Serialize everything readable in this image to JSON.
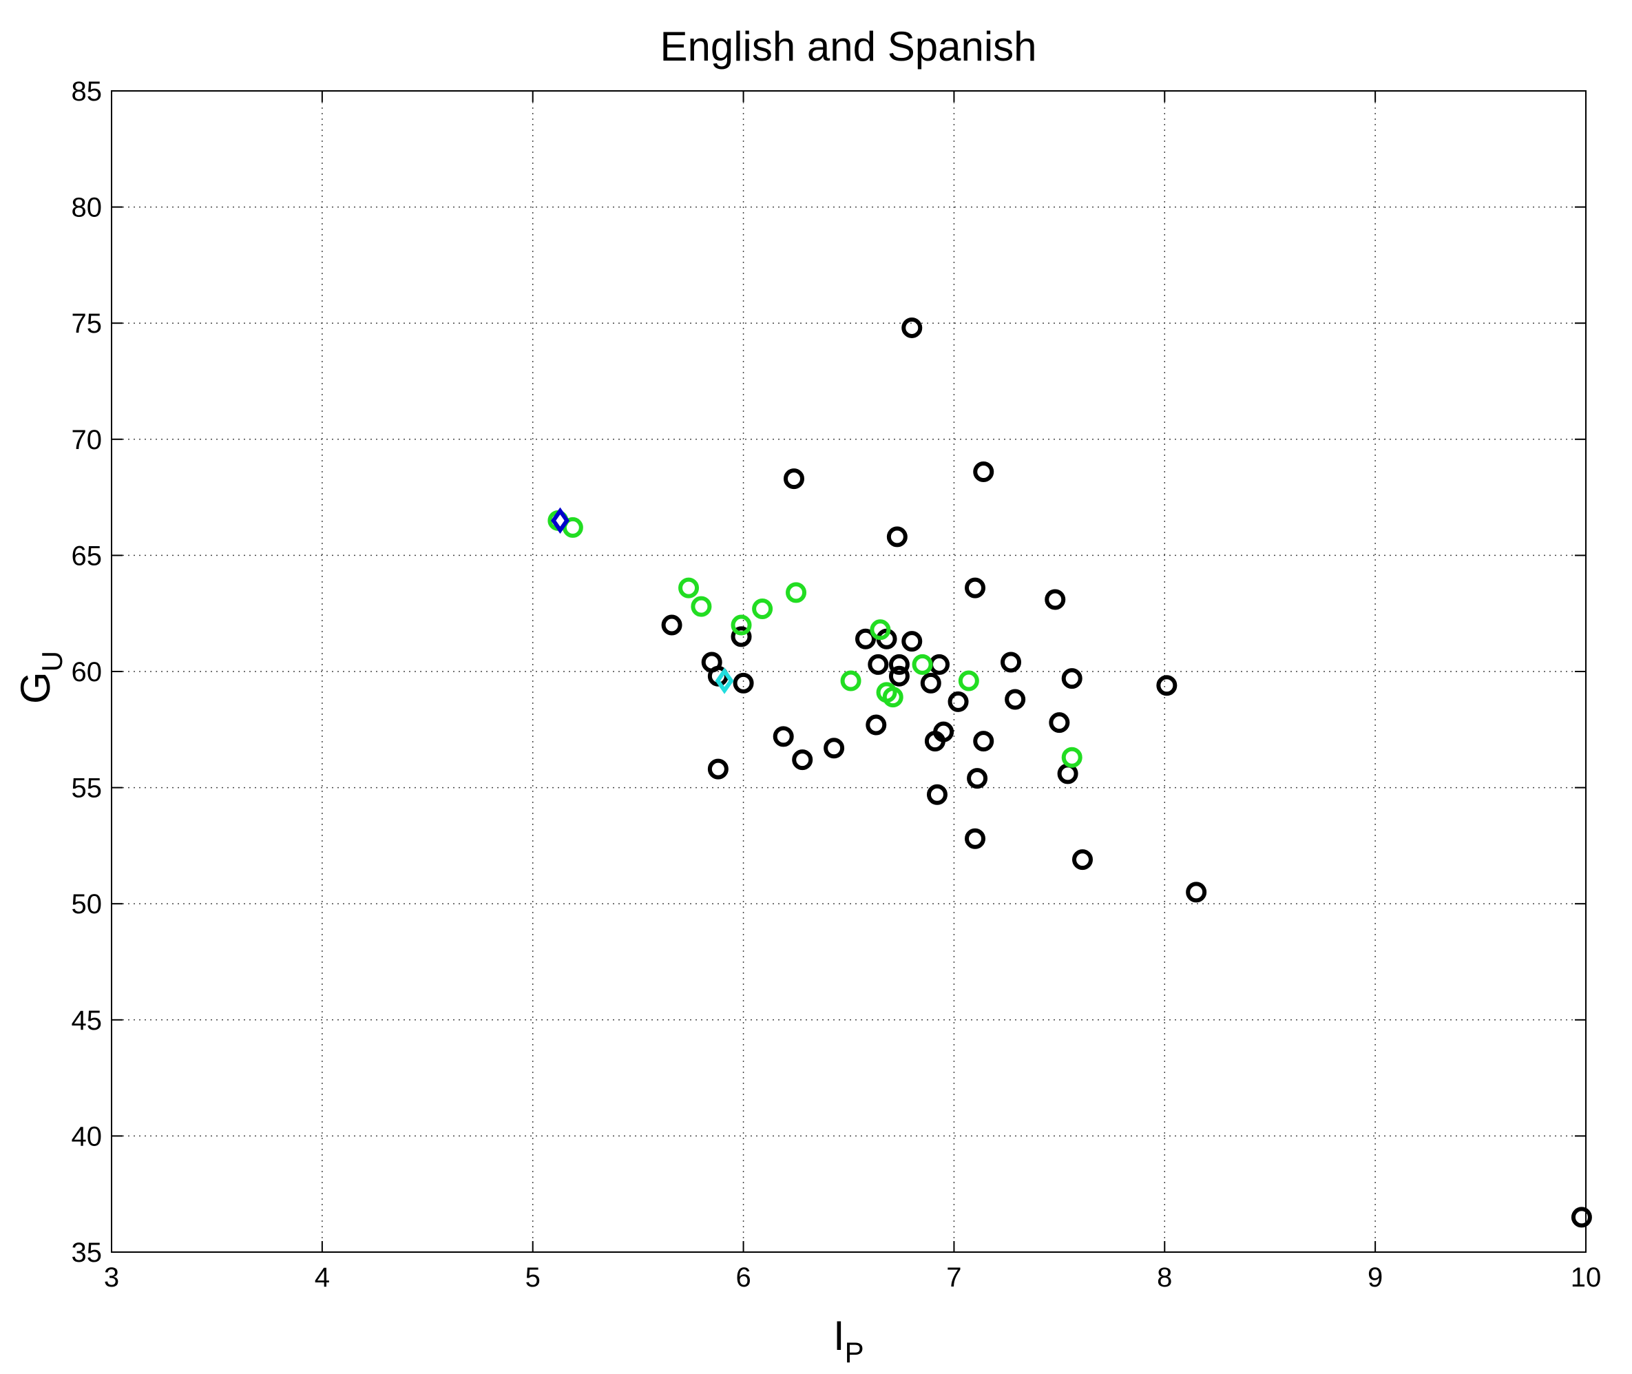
{
  "chart_data": {
    "type": "scatter",
    "title": "English and Spanish",
    "xlabel": {
      "main": "I",
      "sub": "P"
    },
    "ylabel": {
      "main": "G",
      "sub": "U"
    },
    "xlim": [
      3,
      10
    ],
    "ylim": [
      35,
      85
    ],
    "xticks": [
      "3",
      "4",
      "5",
      "6",
      "7",
      "8",
      "9",
      "10"
    ],
    "yticks": [
      "35",
      "40",
      "45",
      "50",
      "55",
      "60",
      "65",
      "70",
      "75",
      "80",
      "85"
    ],
    "grid": true,
    "colors": {
      "black": "#000000",
      "green": "#22dd22",
      "cyan": "#22dddd",
      "blue": "#0000cc"
    },
    "series": [
      {
        "marker": "circle",
        "color": "#000000",
        "points": [
          [
            6.8,
            74.8
          ],
          [
            6.24,
            68.3
          ],
          [
            7.14,
            68.6
          ],
          [
            6.73,
            65.8
          ],
          [
            7.1,
            63.6
          ],
          [
            7.48,
            63.1
          ],
          [
            5.66,
            62.0
          ],
          [
            5.99,
            61.5
          ],
          [
            6.58,
            61.4
          ],
          [
            6.8,
            61.3
          ],
          [
            6.68,
            61.4
          ],
          [
            5.85,
            60.4
          ],
          [
            6.64,
            60.3
          ],
          [
            6.74,
            60.3
          ],
          [
            6.93,
            60.3
          ],
          [
            7.27,
            60.4
          ],
          [
            5.88,
            59.8
          ],
          [
            6.0,
            59.5
          ],
          [
            6.74,
            59.8
          ],
          [
            6.89,
            59.5
          ],
          [
            7.56,
            59.7
          ],
          [
            8.01,
            59.4
          ],
          [
            7.02,
            58.7
          ],
          [
            7.29,
            58.8
          ],
          [
            6.63,
            57.7
          ],
          [
            6.95,
            57.4
          ],
          [
            7.5,
            57.8
          ],
          [
            6.19,
            57.2
          ],
          [
            6.91,
            57.0
          ],
          [
            7.14,
            57.0
          ],
          [
            6.43,
            56.7
          ],
          [
            6.28,
            56.2
          ],
          [
            5.88,
            55.8
          ],
          [
            7.11,
            55.4
          ],
          [
            7.54,
            55.6
          ],
          [
            6.92,
            54.7
          ],
          [
            7.1,
            52.8
          ],
          [
            7.61,
            51.9
          ],
          [
            8.15,
            50.5
          ],
          [
            9.98,
            36.5
          ]
        ]
      },
      {
        "marker": "circle",
        "color": "#22dd22",
        "points": [
          [
            5.12,
            66.5
          ],
          [
            5.19,
            66.2
          ],
          [
            5.74,
            63.6
          ],
          [
            5.8,
            62.8
          ],
          [
            6.09,
            62.7
          ],
          [
            6.25,
            63.4
          ],
          [
            5.99,
            62.0
          ],
          [
            6.65,
            61.8
          ],
          [
            6.85,
            60.3
          ],
          [
            6.51,
            59.6
          ],
          [
            7.07,
            59.6
          ],
          [
            6.68,
            59.1
          ],
          [
            6.71,
            58.9
          ],
          [
            7.56,
            56.3
          ]
        ]
      },
      {
        "marker": "diamond",
        "color": "#22dddd",
        "points": [
          [
            5.91,
            59.6
          ]
        ]
      },
      {
        "marker": "diamond",
        "color": "#0000cc",
        "points": [
          [
            5.13,
            66.5
          ]
        ]
      }
    ]
  }
}
